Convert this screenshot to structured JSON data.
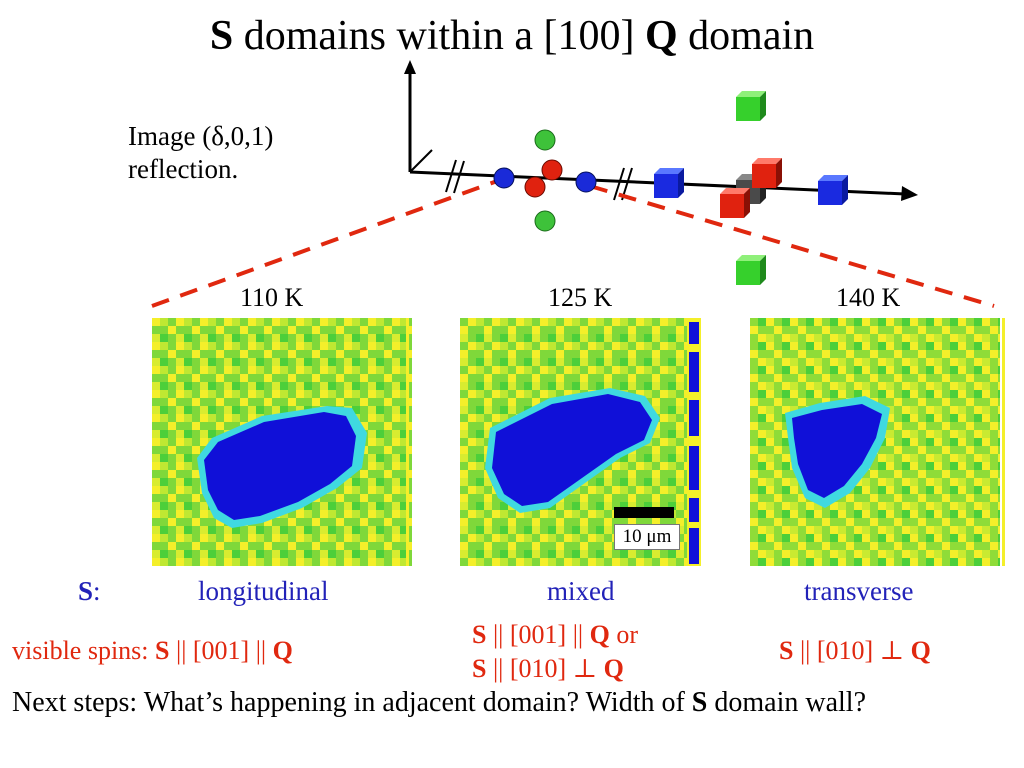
{
  "title": {
    "bold_prefix": "S",
    "middle": " domains within a [100] ",
    "bold_q": "Q",
    "suffix": " domain"
  },
  "caption": {
    "line1": "Image (δ,0,1)",
    "line2": "reflection."
  },
  "panels": [
    {
      "temp": "110 K",
      "label": "longitudinal"
    },
    {
      "temp": "125 K",
      "label": "mixed"
    },
    {
      "temp": "140 K",
      "label": "transverse"
    }
  ],
  "scale_bar": "10 μm",
  "s_label": {
    "bold": "S",
    "rest": ":"
  },
  "visible_spins": {
    "prefix": "visible spins: ",
    "s": "S",
    "rel": " || [001] || ",
    "q": "Q"
  },
  "mixed_rel": {
    "line1_s": "S",
    "line1_rel": " || [001] || ",
    "line1_q": "Q",
    "line1_or": " or",
    "line2_s": "S",
    "line2_rel": " || [010] ⊥ ",
    "line2_q": "Q"
  },
  "transverse_rel": {
    "s": "S",
    "rel": " || [010] ⊥ ",
    "q": "Q"
  },
  "next_steps": {
    "part1": "Next steps: What’s happening in adjacent domain? Width of ",
    "bold": "S",
    "part2": " domain wall?"
  },
  "colors": {
    "blue_domain": "#1010d8",
    "green": "#4ccf3a",
    "yellow": "#f4ef2a",
    "cyan": "#3fd9e0",
    "red": "#e0280f",
    "text_blue": "#2222b8"
  }
}
